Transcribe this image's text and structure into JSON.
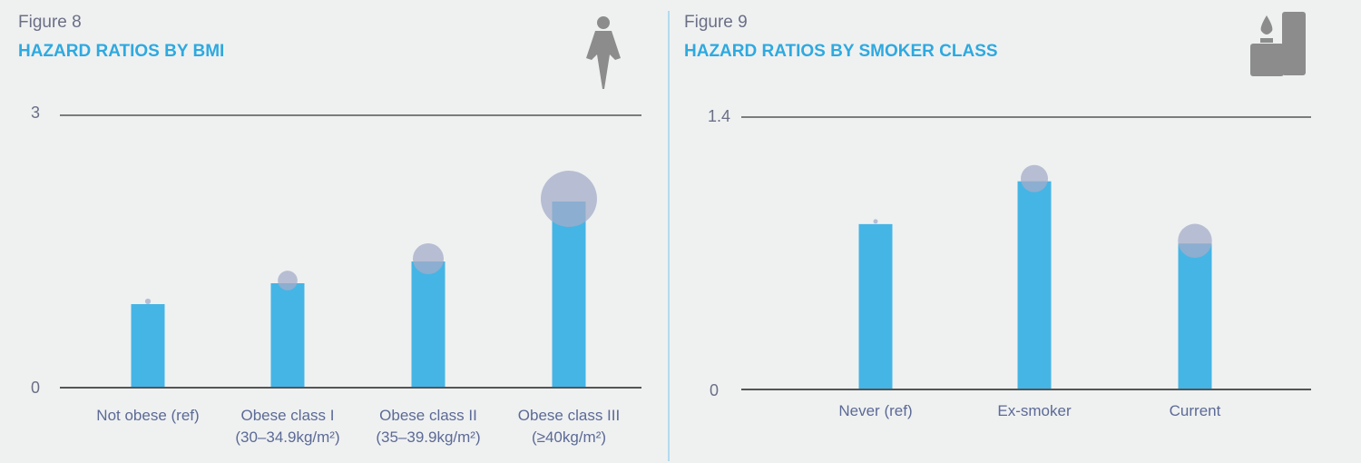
{
  "colors": {
    "bar": "#45b5e5",
    "marker": "#a4acc8",
    "title": "#2ea9e0",
    "divider": "#9fd3ee",
    "axis": "#555555",
    "icon": "#8c8c8c"
  },
  "chart_data": [
    {
      "type": "bar",
      "figure_label": "Figure 8",
      "title": "HAZARD RATIOS BY BMI",
      "icon": "woman-figure-icon",
      "categories": [
        [
          "Not obese (ref)",
          ""
        ],
        [
          "Obese class I",
          "(30–34.9kg/m²)"
        ],
        [
          "Obese class II",
          "(35–39.9kg/m²)"
        ],
        [
          "Obese class III",
          "(≥40kg/m²)"
        ]
      ],
      "values": [
        0.92,
        1.15,
        1.39,
        2.05
      ],
      "marker_size_relative": [
        0.1,
        0.35,
        0.55,
        1.0
      ],
      "yticks": [
        "0",
        "3"
      ],
      "ylim": [
        0,
        3
      ],
      "grid": false
    },
    {
      "type": "bar",
      "figure_label": "Figure 9",
      "title": "HAZARD RATIOS BY SMOKER CLASS",
      "icon": "lighter-icon",
      "categories": [
        [
          "Never (ref)"
        ],
        [
          "Ex-smoker"
        ],
        [
          "Current"
        ]
      ],
      "values": [
        0.85,
        1.07,
        0.75
      ],
      "marker_size_relative": [
        0.07,
        0.6,
        0.75
      ],
      "yticks": [
        "0",
        "1.4"
      ],
      "ylim": [
        0,
        1.4
      ],
      "grid": false
    }
  ]
}
